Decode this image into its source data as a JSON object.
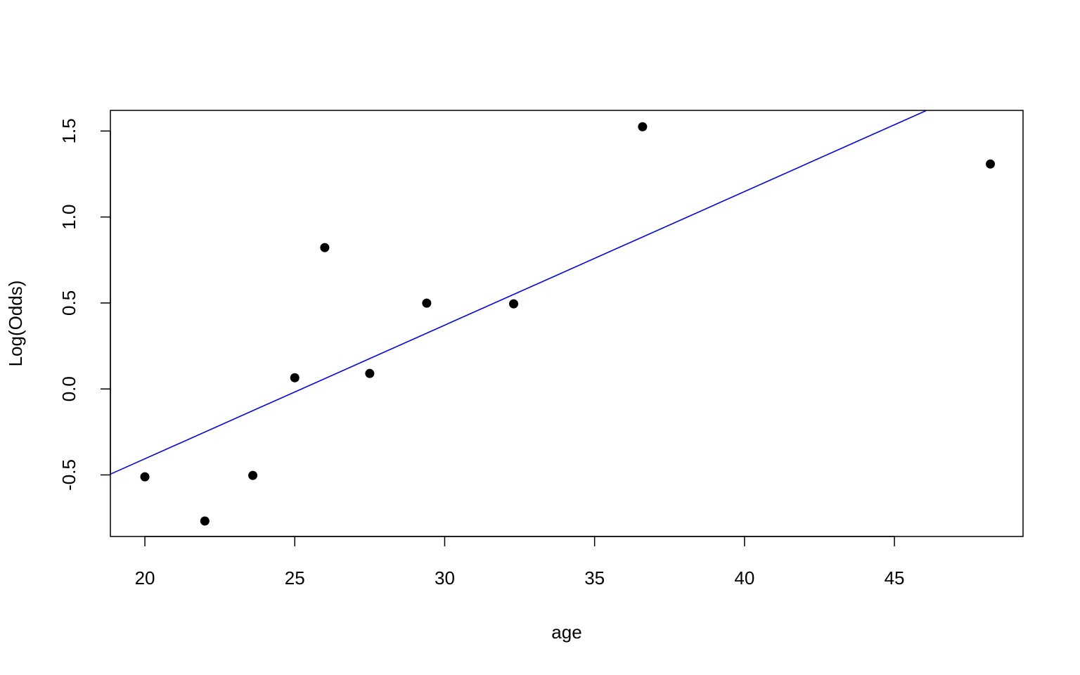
{
  "chart_data": {
    "type": "scatter",
    "x_label": "age",
    "y_label": "Log(Odds)",
    "series": [
      {
        "x": [
          20.0,
          22.0,
          23.6,
          25.0,
          26.0,
          27.5,
          29.4,
          32.3,
          36.6,
          48.2
        ],
        "values": [
          -0.511,
          -0.768,
          -0.503,
          0.065,
          0.822,
          0.09,
          0.499,
          0.495,
          1.525,
          1.308
        ],
        "color": "#000000"
      }
    ],
    "fit_line": {
      "intercept": -1.96,
      "slope": 0.0777,
      "color": "#0000ff"
    },
    "xlim": [
      18.85,
      49.29
    ],
    "ylim": [
      -0.858,
      1.62
    ],
    "xticks": [
      20,
      25,
      30,
      35,
      40,
      45
    ],
    "yticks": [
      -0.5,
      {
        "value": 0,
        "label": "0.0"
      },
      0.5,
      {
        "value": 1,
        "label": "1.0"
      },
      1.5
    ],
    "grid": false
  }
}
